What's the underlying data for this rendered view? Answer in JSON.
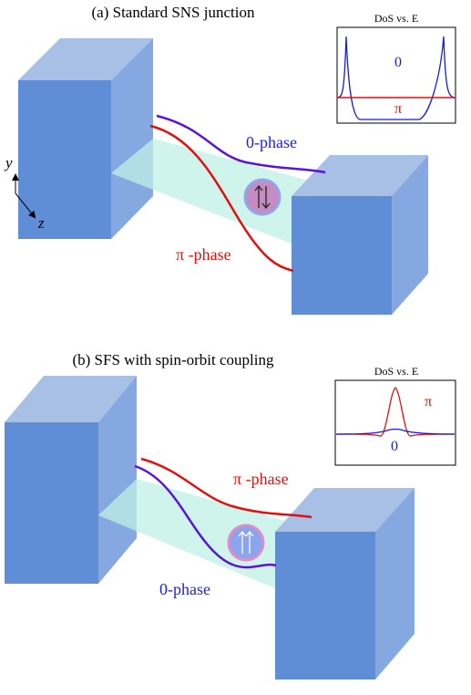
{
  "panels": [
    {
      "title": "(a) Standard SNS junction",
      "inset": {
        "title": "DoS vs. E",
        "labels": [
          "0",
          "π"
        ]
      },
      "curve_labels": [
        "0-phase",
        "π -phase"
      ]
    },
    {
      "title": "(b) SFS with spin-orbit coupling",
      "inset": {
        "title": "DoS vs. E",
        "labels": [
          "π",
          "0"
        ]
      },
      "curve_labels": [
        "π -phase",
        "0-phase"
      ]
    }
  ],
  "axes": {
    "y": "y",
    "z": "z"
  }
}
